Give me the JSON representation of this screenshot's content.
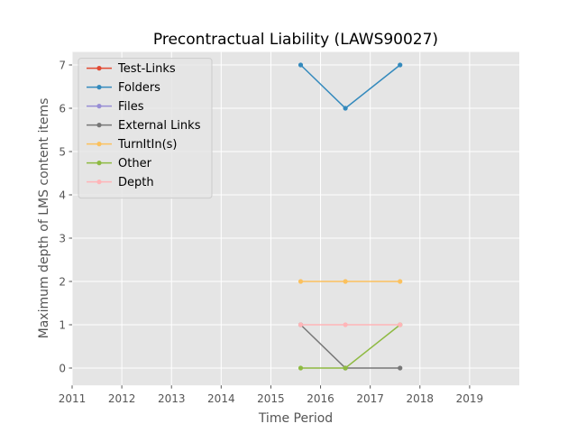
{
  "chart_data": {
    "type": "line",
    "title": "Precontractual Liability (LAWS90027)",
    "xlabel": "Time Period",
    "ylabel": "Maximum depth of LMS content items",
    "xlim": [
      2011,
      2020
    ],
    "ylim": [
      -0.4,
      7.3
    ],
    "xticks": [
      2011,
      2012,
      2013,
      2014,
      2015,
      2016,
      2017,
      2018,
      2019
    ],
    "yticks": [
      0,
      1,
      2,
      3,
      4,
      5,
      6,
      7
    ],
    "grid": true,
    "legend_position": "top-left",
    "x": [
      2015.6,
      2016.5,
      2017.6
    ],
    "series": [
      {
        "name": "Test-Links",
        "color": "#E24A33",
        "values": [
          null,
          null,
          null
        ]
      },
      {
        "name": "Folders",
        "color": "#348ABD",
        "values": [
          7,
          6,
          7
        ]
      },
      {
        "name": "Files",
        "color": "#988ED5",
        "values": [
          null,
          null,
          null
        ]
      },
      {
        "name": "External Links",
        "color": "#777777",
        "values": [
          1,
          0,
          0
        ]
      },
      {
        "name": "TurnItIn(s)",
        "color": "#FBC15E",
        "values": [
          2,
          2,
          2
        ]
      },
      {
        "name": "Other",
        "color": "#8EBA42",
        "values": [
          0,
          0,
          1
        ]
      },
      {
        "name": "Depth",
        "color": "#FFB5B8",
        "values": [
          1,
          1,
          1
        ]
      }
    ]
  }
}
